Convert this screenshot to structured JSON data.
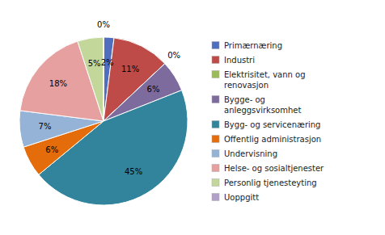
{
  "chart_data": {
    "type": "pie",
    "categories": [
      "Primærnæring",
      "Industri",
      "Elektrisitet, vann og\nrenovasjon",
      "Bygge- og\nanleggsvirksomhet",
      "Bygg- og servicenæring",
      "Offentlig administrasjon",
      "Undervisning",
      "Helse- og sosialtjenester",
      "Personlig tjenesteyting",
      "Uoppgitt"
    ],
    "values": [
      2,
      11,
      0,
      6,
      45,
      6,
      7,
      18,
      5,
      0
    ],
    "value_labels": [
      "2%",
      "11%",
      "0%",
      "6%",
      "45%",
      "6%",
      "7%",
      "18%",
      "5%",
      "0%"
    ],
    "colors": [
      "#4F6EBE",
      "#BE4B48",
      "#9BBB59",
      "#7E6B9E",
      "#31849B",
      "#E46C0A",
      "#95B3D7",
      "#E6A0A0",
      "#C4D79B",
      "#B1A0C7"
    ],
    "data_labels": true,
    "legend": "right"
  }
}
